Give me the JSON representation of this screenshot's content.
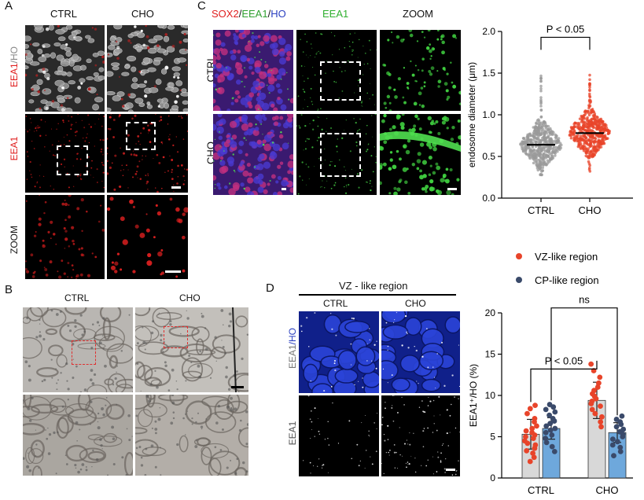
{
  "panels": {
    "A": {
      "letter": "A",
      "col_headers": [
        "CTRL",
        "CHO"
      ],
      "row_label_top_a": "EEA1",
      "row_label_top_b": "/HO",
      "row_label_mid": "EEA1",
      "row_label_bot": "ZOOM"
    },
    "B": {
      "letter": "B",
      "col_headers": [
        "CTRL",
        "CHO"
      ]
    },
    "C": {
      "letter": "C",
      "col_headers": {
        "sox2": "SOX2",
        "slash1": "/",
        "eea1": "EEA1",
        "slash2": "/",
        "ho": "HO",
        "eea1_only": "EEA1",
        "zoom": "ZOOM"
      },
      "row_labels": [
        "CTRL",
        "CHO"
      ]
    },
    "D": {
      "letter": "D",
      "region_title": "VZ - like region",
      "col_headers": [
        "CTRL",
        "CHO"
      ],
      "row_label_top_a": "EEA1",
      "row_label_top_b": "/HO",
      "row_label_bot": "EEA1"
    }
  },
  "colors": {
    "red": "#e02020",
    "green": "#30c030",
    "blue": "#2a3fc0",
    "vz": "#e8442a",
    "cp": "#3a4a6a",
    "bar_grey": "#d8d8d8",
    "bar_blue": "#6ea8dc"
  },
  "chart_data": [
    {
      "type": "scatter",
      "ylabel": "endosome diameter (μm)",
      "categories": [
        "CTRL",
        "CHO"
      ],
      "yticks": [
        "0.0",
        "0.5",
        "1.0",
        "1.5",
        "2.0"
      ],
      "ylim": [
        0,
        2.0
      ],
      "means": [
        0.64,
        0.78
      ],
      "ranges": [
        [
          0.28,
          1.47
        ],
        [
          0.28,
          1.48
        ]
      ],
      "annotation": "P < 0.05"
    },
    {
      "type": "bar",
      "ylabel": "EEA1⁺/HO (%)",
      "categories": [
        "CTRL",
        "CHO"
      ],
      "yticks": [
        "0",
        "5",
        "10",
        "15",
        "20"
      ],
      "ylim": [
        0,
        20
      ],
      "legend_position": "top",
      "series": [
        {
          "name": "VZ-like region",
          "values": [
            5.3,
            9.4
          ],
          "errors": [
            1.8,
            2.2
          ],
          "points": [
            [
              2.0,
              2.5,
              3.0,
              3.3,
              3.6,
              4.0,
              4.2,
              4.5,
              4.8,
              5.0,
              5.2,
              5.5,
              5.7,
              6.0,
              6.3,
              6.8,
              7.2,
              7.8,
              8.4,
              8.8
            ],
            [
              6.2,
              6.8,
              7.4,
              7.8,
              8.3,
              8.7,
              9.0,
              9.3,
              9.6,
              9.9,
              10.2,
              10.6,
              11.0,
              11.5,
              12.2,
              13.0,
              13.8
            ]
          ]
        },
        {
          "name": "CP-like region",
          "values": [
            6.0,
            5.5
          ],
          "errors": [
            1.3,
            1.2
          ],
          "points": [
            [
              3.2,
              3.8,
              4.3,
              4.8,
              5.2,
              5.5,
              5.8,
              6.0,
              6.3,
              6.6,
              6.9,
              7.2,
              7.6,
              8.0,
              8.3,
              8.6,
              8.9
            ],
            [
              2.7,
              3.2,
              3.7,
              4.0,
              4.4,
              4.7,
              5.0,
              5.3,
              5.6,
              5.9,
              6.2,
              6.5,
              6.8,
              7.1,
              7.5
            ]
          ]
        }
      ],
      "annotations": [
        "P < 0.05",
        "ns"
      ]
    }
  ]
}
